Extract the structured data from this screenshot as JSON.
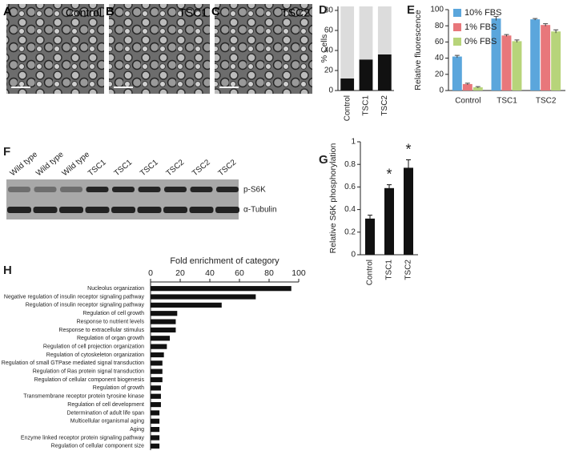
{
  "images": [
    {
      "panel": "A",
      "label": "Control"
    },
    {
      "panel": "B",
      "label": "TSC1"
    },
    {
      "panel": "C",
      "label": "TSC2"
    }
  ],
  "blot": {
    "panel": "F",
    "lanes": [
      "Wild type",
      "Wild type",
      "Wild type",
      "TSC1",
      "TSC1",
      "TSC1",
      "TSC2",
      "TSC2",
      "TSC2"
    ],
    "bands": [
      "p-S6K",
      "α-Tubulin"
    ]
  },
  "chart_data": [
    {
      "type": "bar",
      "panel": "D",
      "stacked": true,
      "ylabel": "% Cells",
      "categories": [
        "Control",
        "TSC1",
        "TSC2"
      ],
      "series": [
        {
          "color": "#111111",
          "values": [
            12,
            31,
            36
          ]
        },
        {
          "color": "#dcdcdc",
          "values": [
            72,
            53,
            48
          ]
        }
      ],
      "ylim": [
        0,
        84
      ],
      "yticks": [
        0,
        20,
        40,
        60,
        80
      ]
    },
    {
      "type": "bar",
      "panel": "E",
      "ylabel": "Relative fluorescence",
      "categories": [
        "Control",
        "TSC1",
        "TSC2"
      ],
      "series": [
        {
          "name": "10% FBS",
          "color": "#5ba6dc",
          "values": [
            42,
            89,
            88
          ],
          "errors": [
            1.5,
            2.5,
            1
          ]
        },
        {
          "name": "1% FBS",
          "color": "#e8777b",
          "values": [
            8,
            68,
            81
          ],
          "errors": [
            1,
            1.2,
            1.5
          ]
        },
        {
          "name": "0% FBS",
          "color": "#b7d47a",
          "values": [
            4,
            61,
            73
          ],
          "errors": [
            0.8,
            1.5,
            2
          ]
        }
      ],
      "ylim": [
        0,
        100
      ],
      "yticks": [
        0,
        20,
        40,
        60,
        80,
        100
      ],
      "legend": "top-left"
    },
    {
      "type": "bar",
      "panel": "G",
      "ylabel": "Relative S6K phosphorylation",
      "categories": [
        "Control",
        "TSC1",
        "TSC2"
      ],
      "values": [
        0.32,
        0.59,
        0.77
      ],
      "errors": [
        0.03,
        0.03,
        0.07
      ],
      "annotations": [
        null,
        "*",
        "*"
      ],
      "color": "#111111",
      "ylim": [
        0,
        1
      ],
      "yticks": [
        0,
        0.2,
        0.4,
        0.6,
        0.8,
        1
      ]
    },
    {
      "type": "barh",
      "panel": "H",
      "xlabel": "Fold enrichment of category",
      "categories": [
        "Nucleolus organization",
        "Negative regulation of insulin receptor signaling pathway",
        "Regulation of insulin receptor signaling pathway",
        "Regulation of cell growth",
        "Response to nutrient levels",
        "Response to extracellular stimulus",
        "Regulation of organ growth",
        "Regulation of cell projection organization",
        "Regulation of cytoskeleton organization",
        "Regulation of small GTPase mediated signal transduction",
        "Regulation of Ras protein signal transduction",
        "Regulation of cellular component biogenesis",
        "Regulation of growth",
        "Transmembrane receptor protein tyrosine kinase",
        "Regulation of cell development",
        "Determination of adult life span",
        "Multicellular organismal aging",
        "Aging",
        "Enzyme linked receptor protein signaling pathway",
        "Regulation of cellular component size"
      ],
      "values": [
        95,
        71,
        48,
        18,
        17,
        17,
        13,
        11,
        9,
        8,
        8,
        8,
        7,
        7,
        7,
        6,
        6,
        6,
        6,
        6
      ],
      "color": "#111111",
      "xlim": [
        0,
        100
      ],
      "xticks": [
        0,
        20,
        40,
        60,
        80,
        100
      ]
    }
  ]
}
